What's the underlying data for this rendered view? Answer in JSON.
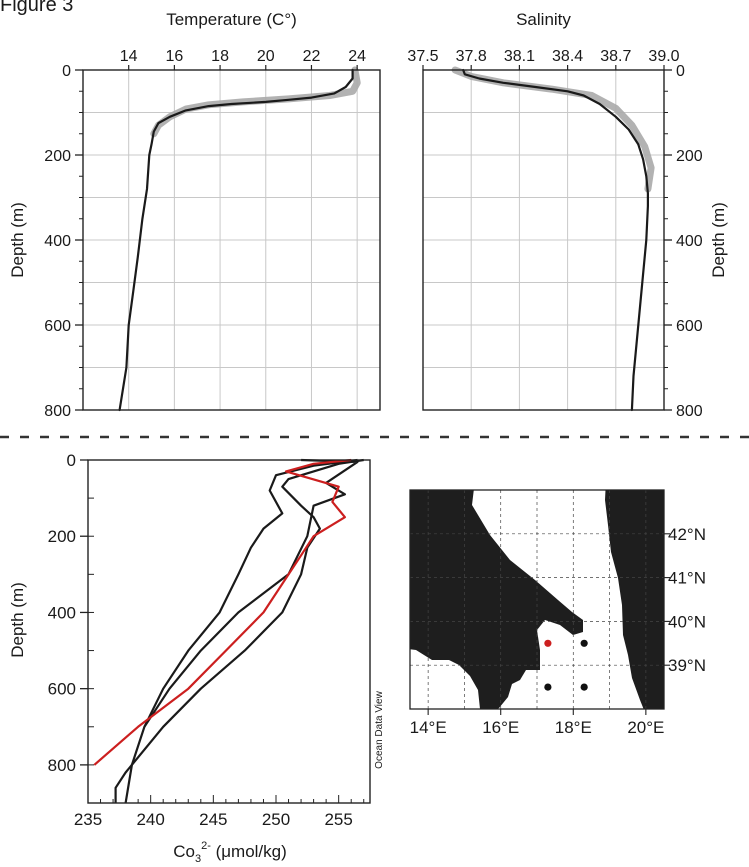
{
  "figure_label": "Figure 3",
  "chart_data": [
    {
      "id": "temperature",
      "type": "line",
      "title": "Temperature (C°)",
      "xlabel": "Temperature (C°)",
      "ylabel": "Depth (m)",
      "xlim": [
        12,
        25
      ],
      "ylim": [
        800,
        0
      ],
      "x_ticks": [
        "14",
        "16",
        "18",
        "20",
        "22",
        "24"
      ],
      "y_ticks": [
        "0",
        "200",
        "400",
        "600",
        "800"
      ],
      "grid": true,
      "series": [
        {
          "color": "#1a1a1a",
          "x": [
            23.8,
            23.8,
            23.5,
            23.0,
            22.0,
            21.0,
            20.0,
            18.5,
            17.5,
            16.5,
            15.8,
            15.3,
            15.1,
            15.0,
            14.9,
            14.8,
            14.6,
            14.4,
            14.2,
            14.0,
            13.9,
            13.6
          ],
          "y": [
            0,
            20,
            40,
            55,
            65,
            70,
            75,
            80,
            85,
            95,
            110,
            125,
            145,
            175,
            200,
            280,
            350,
            440,
            520,
            600,
            700,
            800
          ]
        },
        {
          "color": "#aaaaaa",
          "x": [
            23.9,
            24.0,
            23.8,
            22.8,
            21.0,
            19.0,
            17.5,
            16.5,
            15.8,
            15.3,
            15.1
          ],
          "y": [
            0,
            30,
            50,
            60,
            68,
            75,
            82,
            92,
            110,
            130,
            150
          ]
        }
      ]
    },
    {
      "id": "salinity",
      "type": "line",
      "title": "Salinity",
      "xlabel": "Salinity",
      "ylabel": "Depth (m)",
      "xlim": [
        37.5,
        39.0
      ],
      "ylim": [
        800,
        0
      ],
      "x_ticks": [
        "37.5",
        "37.8",
        "38.1",
        "38.4",
        "38.7",
        "39.0"
      ],
      "y_ticks": [
        "0",
        "200",
        "400",
        "600",
        "800"
      ],
      "grid": true,
      "series": [
        {
          "color": "#1a1a1a",
          "x": [
            37.75,
            37.76,
            37.85,
            38.0,
            38.2,
            38.4,
            38.5,
            38.6,
            38.7,
            38.78,
            38.84,
            38.87,
            38.89,
            38.9,
            38.9,
            38.89,
            38.87,
            38.85,
            38.83,
            38.81,
            38.8
          ],
          "y": [
            0,
            10,
            20,
            30,
            40,
            50,
            60,
            80,
            110,
            140,
            175,
            210,
            250,
            290,
            320,
            400,
            480,
            560,
            640,
            720,
            800
          ]
        },
        {
          "color": "#aaaaaa",
          "x": [
            37.7,
            37.8,
            38.0,
            38.3,
            38.55,
            38.7,
            38.8,
            38.88,
            38.92,
            38.9
          ],
          "y": [
            0,
            15,
            30,
            45,
            60,
            90,
            130,
            180,
            230,
            280
          ]
        }
      ]
    },
    {
      "id": "carbonate",
      "type": "line",
      "xlabel": "Co3^2- (μmol/kg)",
      "xlabel_main": "Co",
      "xlabel_sub": "3",
      "xlabel_sup": "2-",
      "xlabel_unit": " (μmol/kg)",
      "ylabel": "Depth (m)",
      "xlim": [
        235,
        257.5
      ],
      "ylim": [
        900,
        0
      ],
      "x_ticks": [
        "235",
        "240",
        "245",
        "250",
        "255"
      ],
      "y_ticks": [
        "0",
        "200",
        "400",
        "600",
        "800"
      ],
      "grid": false,
      "watermark": "Ocean Data View",
      "series": [
        {
          "color": "#1a1a1a",
          "x": [
            257.0,
            255.0,
            251.0,
            250.5,
            252.0,
            253.0,
            253.5,
            252.5,
            252.0,
            250.5,
            247.5,
            244.0,
            241.0,
            239.0,
            238.0,
            237.2,
            237.2
          ],
          "y": [
            0,
            10,
            50,
            70,
            120,
            150,
            180,
            230,
            300,
            400,
            500,
            600,
            700,
            780,
            820,
            860,
            900
          ]
        },
        {
          "color": "#1a1a1a",
          "x": [
            256.5,
            253.0,
            250.0,
            249.5,
            250.5,
            249.0,
            248.0,
            247.0,
            245.5,
            243.0,
            241.0,
            239.5,
            238.5,
            238.0
          ],
          "y": [
            0,
            15,
            40,
            80,
            140,
            180,
            230,
            300,
            400,
            500,
            600,
            700,
            800,
            900
          ]
        },
        {
          "color": "#1a1a1a",
          "x": [
            252.0,
            256.5,
            254.0,
            255.5,
            253.0,
            252.5,
            251.0,
            247.0,
            244.0,
            241.5,
            239.5
          ],
          "y": [
            0,
            5,
            60,
            90,
            120,
            200,
            300,
            400,
            500,
            600,
            700
          ]
        },
        {
          "color": "#cc1f1f",
          "x": [
            256.0,
            253.0,
            250.8,
            255.0,
            254.5,
            255.5,
            253.0,
            252.0,
            249.0,
            246.0,
            243.0,
            239.0,
            235.5
          ],
          "y": [
            0,
            10,
            30,
            70,
            110,
            150,
            200,
            250,
            400,
            500,
            600,
            700,
            800
          ]
        }
      ]
    },
    {
      "id": "station-map",
      "type": "scatter",
      "lon_ticks": [
        "14°E",
        "16°E",
        "18°E",
        "20°E"
      ],
      "lat_ticks": [
        "42°N",
        "41°N",
        "40°N",
        "39°N"
      ],
      "xlim": [
        13.5,
        20.5
      ],
      "ylim": [
        38.0,
        43.0
      ],
      "grid": true,
      "stations": [
        {
          "lon": 17.3,
          "lat": 39.5,
          "color": "#cc1f1f"
        },
        {
          "lon": 18.3,
          "lat": 39.5,
          "color": "#111111"
        },
        {
          "lon": 17.3,
          "lat": 38.5,
          "color": "#111111"
        },
        {
          "lon": 18.3,
          "lat": 38.5,
          "color": "#111111"
        }
      ]
    }
  ]
}
